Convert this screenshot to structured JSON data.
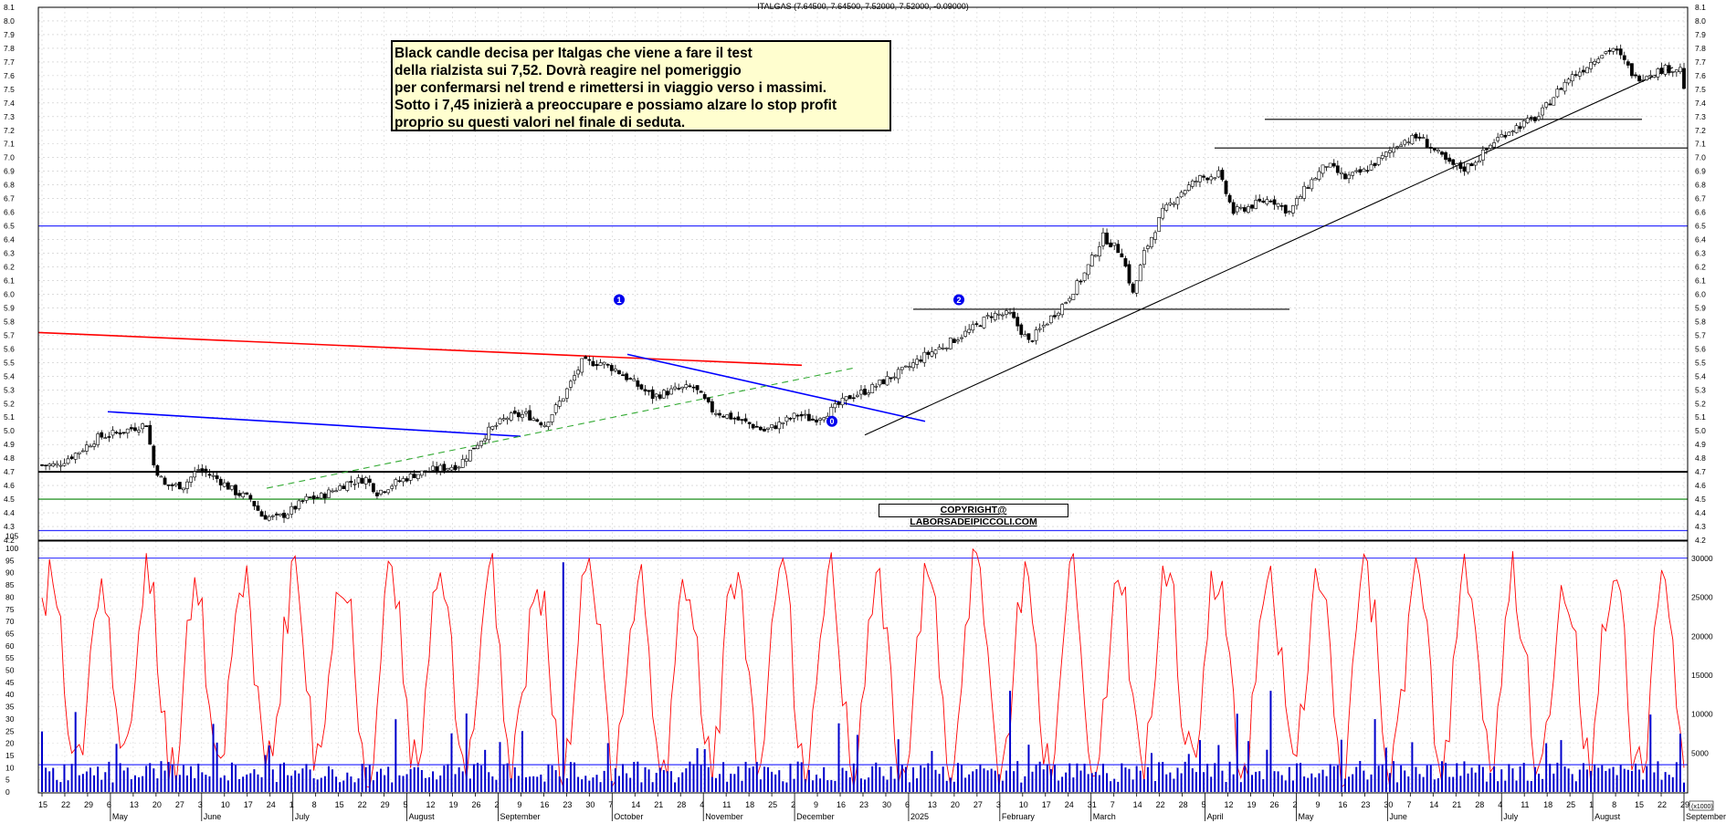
{
  "title": "ITALGAS (7.64500, 7.64500, 7.52000, 7.52000, -0.09000)",
  "annotation_lines": [
    "Black candle decisa per  Italgas che viene a fare il test",
    "della rialzista sui 7,52. Dovrà reagire nel pomeriggio",
    "per confermarsi nel trend e rimettersi in viaggio verso i massimi.",
    "Sotto i 7,45 inizierà a preoccupare e possiamo alzare lo stop profit",
    "proprio su questi valori nel finale di seduta."
  ],
  "copyright": "COPYRIGHT@ LABORSADEIPICCOLI.COM",
  "colors": {
    "candle": "#000000",
    "oscillator": "#ff0000",
    "volume": "#0000cc",
    "hline_blue": "#3333ff",
    "hline_green": "#008000",
    "trend_red": "#ff0000",
    "trend_blue": "#0000ff",
    "trend_green_dashed": "#33aa33",
    "background": "#ffffff",
    "note_bg": "#fffecf"
  },
  "chart_data": [
    {
      "type": "candlestick",
      "panel": "price",
      "ylim": [
        4.2,
        8.1
      ],
      "y_ticks": [
        "8.1",
        "8.0",
        "7.9",
        "7.8",
        "7.7",
        "7.6",
        "7.5",
        "7.4",
        "7.3",
        "7.2",
        "7.1",
        "7.0",
        "6.9",
        "6.8",
        "6.7",
        "6.6",
        "6.5",
        "6.4",
        "6.3",
        "6.2",
        "6.1",
        "6.0",
        "5.9",
        "5.8",
        "5.7",
        "5.6",
        "5.5",
        "5.4",
        "5.3",
        "5.2",
        "5.1",
        "5.0",
        "4.9",
        "4.8",
        "4.7",
        "4.6",
        "4.5",
        "4.4",
        "4.3",
        "4.2"
      ],
      "series": [
        {
          "name": "Italgas daily closes (approx.)",
          "keypoints": [
            [
              0,
              4.75
            ],
            [
              4,
              4.75
            ],
            [
              10,
              4.85
            ],
            [
              15,
              4.95
            ],
            [
              22,
              5.0
            ],
            [
              28,
              5.05
            ],
            [
              30,
              4.75
            ],
            [
              33,
              4.6
            ],
            [
              38,
              4.6
            ],
            [
              42,
              4.72
            ],
            [
              47,
              4.65
            ],
            [
              52,
              4.55
            ],
            [
              56,
              4.5
            ],
            [
              59,
              4.38
            ],
            [
              63,
              4.36
            ],
            [
              66,
              4.4
            ],
            [
              71,
              4.5
            ],
            [
              75,
              4.52
            ],
            [
              82,
              4.62
            ],
            [
              87,
              4.65
            ],
            [
              90,
              4.55
            ],
            [
              95,
              4.62
            ],
            [
              100,
              4.68
            ],
            [
              106,
              4.72
            ],
            [
              112,
              4.75
            ],
            [
              115,
              4.85
            ],
            [
              120,
              5.0
            ],
            [
              125,
              5.1
            ],
            [
              130,
              5.12
            ],
            [
              135,
              5.05
            ],
            [
              140,
              5.25
            ],
            [
              145,
              5.5
            ],
            [
              150,
              5.5
            ],
            [
              154,
              5.45
            ],
            [
              159,
              5.35
            ],
            [
              164,
              5.25
            ],
            [
              170,
              5.3
            ],
            [
              175,
              5.32
            ],
            [
              180,
              5.15
            ],
            [
              185,
              5.1
            ],
            [
              190,
              5.05
            ],
            [
              194,
              5.0
            ],
            [
              198,
              5.05
            ],
            [
              203,
              5.12
            ],
            [
              207,
              5.08
            ],
            [
              212,
              5.15
            ],
            [
              217,
              5.25
            ],
            [
              222,
              5.3
            ],
            [
              227,
              5.38
            ],
            [
              232,
              5.45
            ],
            [
              237,
              5.55
            ],
            [
              242,
              5.62
            ],
            [
              247,
              5.7
            ],
            [
              250,
              5.75
            ],
            [
              255,
              5.85
            ],
            [
              260,
              5.85
            ],
            [
              265,
              5.65
            ],
            [
              270,
              5.8
            ],
            [
              275,
              5.95
            ],
            [
              280,
              6.15
            ],
            [
              285,
              6.42
            ],
            [
              290,
              6.3
            ],
            [
              293,
              6.0
            ],
            [
              296,
              6.3
            ],
            [
              301,
              6.6
            ],
            [
              306,
              6.75
            ],
            [
              311,
              6.85
            ],
            [
              316,
              6.88
            ],
            [
              320,
              6.6
            ],
            [
              325,
              6.65
            ],
            [
              330,
              6.7
            ],
            [
              335,
              6.6
            ],
            [
              340,
              6.8
            ],
            [
              345,
              6.95
            ],
            [
              350,
              6.85
            ],
            [
              355,
              6.9
            ],
            [
              360,
              7.0
            ],
            [
              365,
              7.12
            ],
            [
              370,
              7.15
            ],
            [
              374,
              7.05
            ],
            [
              378,
              6.95
            ],
            [
              382,
              6.92
            ],
            [
              386,
              7.0
            ],
            [
              390,
              7.12
            ],
            [
              394,
              7.2
            ],
            [
              398,
              7.25
            ],
            [
              402,
              7.3
            ],
            [
              406,
              7.45
            ],
            [
              410,
              7.58
            ],
            [
              414,
              7.65
            ],
            [
              418,
              7.75
            ],
            [
              422,
              7.8
            ],
            [
              425,
              7.7
            ],
            [
              428,
              7.58
            ],
            [
              432,
              7.62
            ],
            [
              436,
              7.65
            ],
            [
              440,
              7.65
            ],
            [
              441,
              7.52
            ]
          ]
        }
      ],
      "horizontal_lines": [
        {
          "value": 6.5,
          "color": "blue"
        },
        {
          "value": 4.7,
          "color": "black"
        },
        {
          "value": 4.5,
          "color": "green"
        },
        {
          "value": 4.27,
          "color": "blue"
        },
        {
          "value": 5.89,
          "color": "black",
          "segment": true
        },
        {
          "value": 7.07,
          "color": "black",
          "segment": true
        },
        {
          "value": 7.28,
          "color": "black",
          "segment": true
        }
      ],
      "markers": [
        "1",
        "0",
        "2"
      ]
    },
    {
      "type": "line",
      "panel": "oscillator",
      "ylim": [
        0,
        105
      ],
      "y_ticks": [
        "105",
        "100",
        "95",
        "90",
        "85",
        "80",
        "75",
        "70",
        "65",
        "60",
        "55",
        "50",
        "45",
        "40",
        "35",
        "30",
        "25",
        "20",
        "15",
        "10",
        "5",
        "0"
      ],
      "series": [
        {
          "name": "Oscillator",
          "color": "red"
        }
      ],
      "horizontal_lines": [
        {
          "value": 96,
          "color": "blue"
        }
      ]
    },
    {
      "type": "bar",
      "panel": "volume",
      "y_ticks_right": [
        "30000",
        "25000",
        "20000",
        "15000",
        "10000",
        "5000"
      ],
      "unit_label": "(x1000)",
      "horizontal_lines": [
        {
          "value": 3500,
          "color": "blue"
        }
      ]
    }
  ],
  "x_axis": {
    "day_labels": [
      "15",
      "22",
      "29",
      "6",
      "13",
      "20",
      "27",
      "3",
      "10",
      "17",
      "24",
      "1",
      "8",
      "15",
      "22",
      "29",
      "5",
      "12",
      "19",
      "26",
      "2",
      "9",
      "16",
      "23",
      "30",
      "7",
      "14",
      "21",
      "28",
      "4",
      "11",
      "18",
      "25",
      "2",
      "9",
      "16",
      "23",
      "30",
      "6",
      "13",
      "20",
      "27",
      "3",
      "10",
      "17",
      "24",
      "31",
      "7",
      "14",
      "22",
      "28",
      "5",
      "12",
      "19",
      "26",
      "2",
      "9",
      "16",
      "23",
      "30",
      "7",
      "14",
      "21",
      "28",
      "4",
      "11",
      "18",
      "25",
      "1",
      "8",
      "15",
      "22",
      "29"
    ],
    "month_labels": [
      "May",
      "June",
      "July",
      "August",
      "September",
      "October",
      "November",
      "December",
      "2025",
      "February",
      "March",
      "April",
      "May",
      "June",
      "July",
      "August",
      "September"
    ]
  }
}
